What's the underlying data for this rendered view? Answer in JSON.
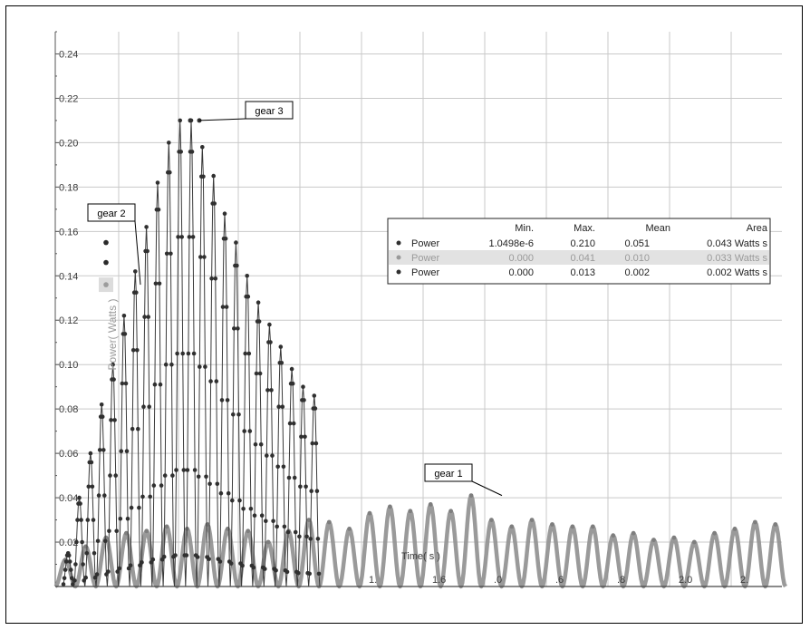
{
  "chart_data": {
    "type": "scatter",
    "title": "",
    "ylabel": "Power( Watts )",
    "xlabel": "Time( s )",
    "ylim": [
      0,
      0.25
    ],
    "y_ticks": [
      "0.02",
      "0.04",
      "0.06",
      "0.08",
      "0.10",
      "0.12",
      "0.14",
      "0.16",
      "0.18",
      "0.20",
      "0.22",
      "0.24"
    ],
    "x_tick_labels": [
      ".0",
      "1.2",
      "1.4",
      "1.6",
      "1.8",
      "2.0",
      "2.2"
    ],
    "x_tick_partial": [
      "1.",
      "1.6",
      ".0",
      ".6",
      ".8",
      "2.0",
      "2."
    ],
    "grid": true,
    "series": [
      {
        "name": "gear 3",
        "color": "#303030",
        "style": "points-line",
        "peaks": [
          0.015,
          0.04,
          0.06,
          0.082,
          0.1,
          0.122,
          0.142,
          0.162,
          0.182,
          0.2,
          0.21,
          0.21,
          0.198,
          0.185,
          0.168,
          0.155,
          0.14,
          0.128,
          0.118,
          0.108,
          0.098,
          0.09,
          0.086
        ]
      },
      {
        "name": "gear 2",
        "color": "#2a2a2a",
        "style": "points",
        "values": [
          0.155,
          0.146,
          0.136
        ]
      },
      {
        "name": "gear 1",
        "color": "#8a8a8a",
        "style": "thick-line",
        "peaks": [
          0.012,
          0.018,
          0.022,
          0.024,
          0.025,
          0.027,
          0.026,
          0.028,
          0.026,
          0.025,
          0.02,
          0.025,
          0.03,
          0.029,
          0.026,
          0.033,
          0.036,
          0.034,
          0.037,
          0.034,
          0.041,
          0.03,
          0.027,
          0.03,
          0.028,
          0.027,
          0.027,
          0.023,
          0.024,
          0.021,
          0.022,
          0.02,
          0.024,
          0.026,
          0.029,
          0.028
        ]
      }
    ],
    "annotations": [
      {
        "label": "gear 3",
        "target": [
          1.62,
          0.21
        ]
      },
      {
        "label": "gear 2",
        "target": [
          0.98,
          0.136
        ]
      },
      {
        "label": "gear 1",
        "target": [
          1.73,
          0.041
        ]
      }
    ],
    "stats_table": {
      "headers": [
        "",
        "Min.",
        "Max.",
        "Mean",
        "Area"
      ],
      "rows": [
        {
          "label": "Power",
          "min": "1.0498e-6",
          "max": "0.210",
          "mean": "0.051",
          "area": "0.043 Watts s",
          "color": "#303030",
          "grey": false
        },
        {
          "label": "Power",
          "min": "0.000",
          "max": "0.041",
          "mean": "0.010",
          "area": "0.033 Watts s",
          "color": "#9a9a9a",
          "grey": true
        },
        {
          "label": "Power",
          "min": "0.000",
          "max": "0.013",
          "mean": "0.002",
          "area": "0.002 Watts s",
          "color": "#303030",
          "grey": false
        }
      ]
    }
  }
}
